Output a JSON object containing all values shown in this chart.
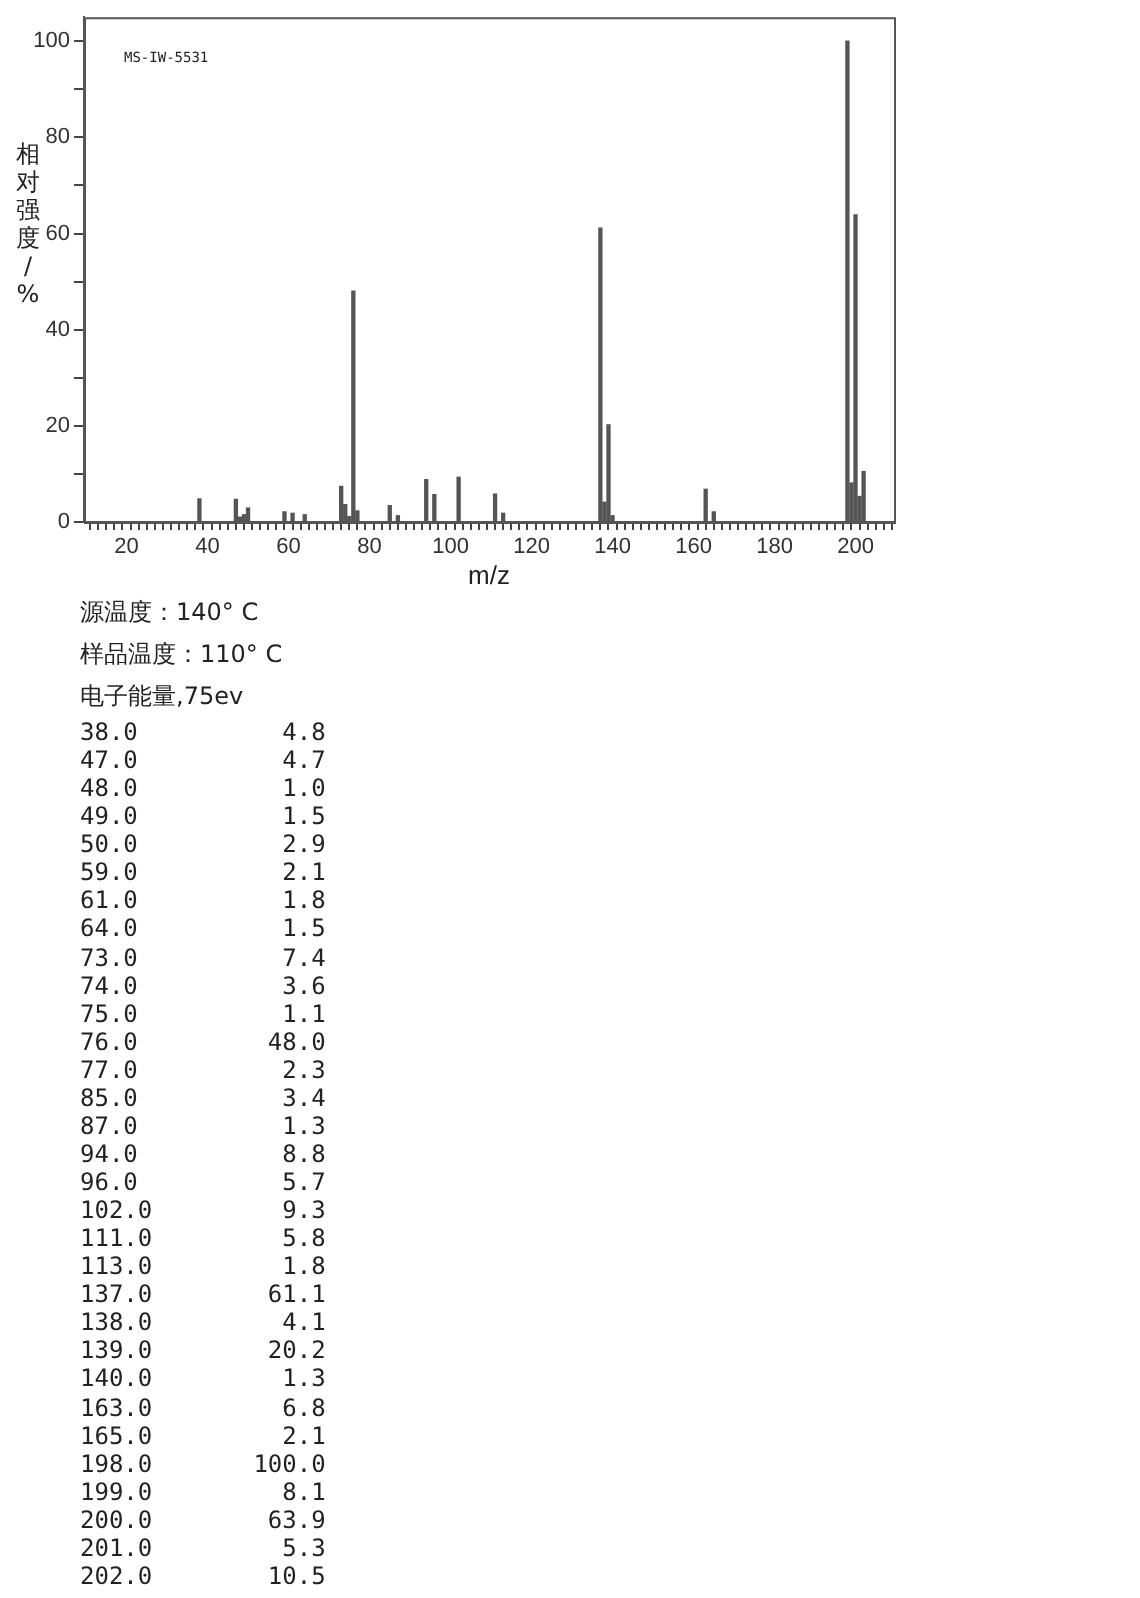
{
  "chart_data": {
    "type": "bar",
    "xlabel": "m/z",
    "ylabel": "相对强度/%",
    "annotations": [
      "MS-IW-5531",
      "源温度：140° C",
      "样品温度：110° C",
      "电子能量,75ev",
      "38.0          4.8",
      "47.0          4.7",
      "48.0          1.0",
      "49.0          1.5",
      "50.0          2.9",
      "59.0          2.1",
      "61.0          1.8",
      "64.0          1.5",
      "73.0          7.4",
      "74.0          3.6",
      "75.0          1.1",
      "76.0         48.0",
      "77.0          2.3",
      "85.0          3.4",
      "87.0          1.3",
      "94.0          8.8",
      "96.0          5.7",
      "102.0         9.3",
      "111.0         5.8",
      "113.0         1.8",
      "137.0        61.1",
      "138.0         4.1",
      "139.0        20.2",
      "140.0         1.3",
      "163.0         6.8",
      "165.0         2.1",
      "198.0       100.0",
      "199.0         8.1",
      "200.0        63.9",
      "201.0         5.3",
      "202.0        10.5"
    ],
    "x": [
      38,
      47,
      48,
      49,
      50,
      59,
      61,
      64,
      73,
      74,
      75,
      76,
      77,
      85,
      87,
      94,
      96,
      102,
      111,
      113,
      137,
      138,
      139,
      140,
      163,
      165,
      198,
      199,
      200,
      201,
      202
    ],
    "values": [
      4.8,
      4.7,
      1.0,
      1.5,
      2.9,
      2.1,
      1.8,
      1.5,
      7.4,
      3.6,
      1.1,
      48.0,
      2.3,
      3.4,
      1.3,
      8.8,
      5.7,
      9.3,
      5.8,
      1.8,
      61.1,
      4.1,
      20.2,
      1.3,
      6.8,
      2.1,
      100.0,
      8.1,
      63.9,
      5.3,
      10.5
    ],
    "color": "#555555",
    "grid": false,
    "legend": false,
    "xlim": [
      9.5,
      209.5
    ],
    "xticks": [
      {
        "value": 10,
        "label": null
      },
      {
        "value": 12,
        "label": null
      },
      {
        "value": 14,
        "label": null
      },
      {
        "value": 16,
        "label": null
      },
      {
        "value": 18,
        "label": null
      },
      20,
      {
        "value": 22,
        "label": null
      },
      {
        "value": 24,
        "label": null
      },
      {
        "value": 26,
        "label": null
      },
      {
        "value": 28,
        "label": null
      },
      {
        "value": 30,
        "label": null
      },
      {
        "value": 32,
        "label": null
      },
      {
        "value": 34,
        "label": null
      },
      {
        "value": 36,
        "label": null
      },
      {
        "value": 38,
        "label": null
      },
      40,
      {
        "value": 42,
        "label": null
      },
      {
        "value": 44,
        "label": null
      },
      {
        "value": 46,
        "label": null
      },
      {
        "value": 48,
        "label": null
      },
      {
        "value": 50,
        "label": null
      },
      {
        "value": 52,
        "label": null
      },
      {
        "value": 54,
        "label": null
      },
      {
        "value": 56,
        "label": null
      },
      {
        "value": 58,
        "label": null
      },
      60,
      {
        "value": 62,
        "label": null
      },
      {
        "value": 64,
        "label": null
      },
      {
        "value": 66,
        "label": null
      },
      {
        "value": 68,
        "label": null
      },
      {
        "value": 70,
        "label": null
      },
      {
        "value": 72,
        "label": null
      },
      {
        "value": 74,
        "label": null
      },
      {
        "value": 76,
        "label": null
      },
      {
        "value": 78,
        "label": null
      },
      80,
      {
        "value": 82,
        "label": null
      },
      {
        "value": 84,
        "label": null
      },
      {
        "value": 86,
        "label": null
      },
      {
        "value": 88,
        "label": null
      },
      {
        "value": 90,
        "label": null
      },
      {
        "value": 92,
        "label": null
      },
      {
        "value": 94,
        "label": null
      },
      {
        "value": 96,
        "label": null
      },
      {
        "value": 98,
        "label": null
      },
      100,
      {
        "value": 102,
        "label": null
      },
      {
        "value": 104,
        "label": null
      },
      {
        "value": 106,
        "label": null
      },
      {
        "value": 108,
        "label": null
      },
      {
        "value": 110,
        "label": null
      },
      {
        "value": 112,
        "label": null
      },
      {
        "value": 114,
        "label": null
      },
      {
        "value": 116,
        "label": null
      },
      {
        "value": 118,
        "label": null
      },
      120,
      {
        "value": 122,
        "label": null
      },
      {
        "value": 124,
        "label": null
      },
      {
        "value": 126,
        "label": null
      },
      {
        "value": 128,
        "label": null
      },
      {
        "value": 130,
        "label": null
      },
      {
        "value": 132,
        "label": null
      },
      {
        "value": 134,
        "label": null
      },
      {
        "value": 136,
        "label": null
      },
      {
        "value": 138,
        "label": null
      },
      140,
      {
        "value": 142,
        "label": null
      },
      {
        "value": 144,
        "label": null
      },
      {
        "value": 146,
        "label": null
      },
      {
        "value": 148,
        "label": null
      },
      {
        "value": 150,
        "label": null
      },
      {
        "value": 152,
        "label": null
      },
      {
        "value": 154,
        "label": null
      },
      {
        "value": 156,
        "label": null
      },
      {
        "value": 158,
        "label": null
      },
      160,
      {
        "value": 162,
        "label": null
      },
      {
        "value": 164,
        "label": null
      },
      {
        "value": 166,
        "label": null
      },
      {
        "value": 168,
        "label": null
      },
      {
        "value": 170,
        "label": null
      },
      {
        "value": 172,
        "label": null
      },
      {
        "value": 174,
        "label": null
      },
      {
        "value": 176,
        "label": null
      },
      {
        "value": 178,
        "label": null
      },
      180,
      {
        "value": 182,
        "label": null
      },
      {
        "value": 184,
        "label": null
      },
      {
        "value": 186,
        "label": null
      },
      {
        "value": 188,
        "label": null
      },
      {
        "value": 190,
        "label": null
      },
      {
        "value": 192,
        "label": null
      },
      {
        "value": 194,
        "label": null
      },
      {
        "value": 196,
        "label": null
      },
      {
        "value": 198,
        "label": null
      },
      200,
      {
        "value": 202,
        "label": null
      },
      {
        "value": 204,
        "label": null
      },
      {
        "value": 206,
        "label": null
      },
      {
        "value": 208,
        "label": null
      }
    ],
    "ylim": [
      0,
      105
    ],
    "yticks": [
      0,
      {
        "value": 10,
        "label": null
      },
      20,
      {
        "value": 30,
        "label": null
      },
      40,
      {
        "value": 50,
        "label": null
      },
      60,
      {
        "value": 70,
        "label": null
      },
      80,
      {
        "value": 90,
        "label": null
      },
      100
    ]
  }
}
